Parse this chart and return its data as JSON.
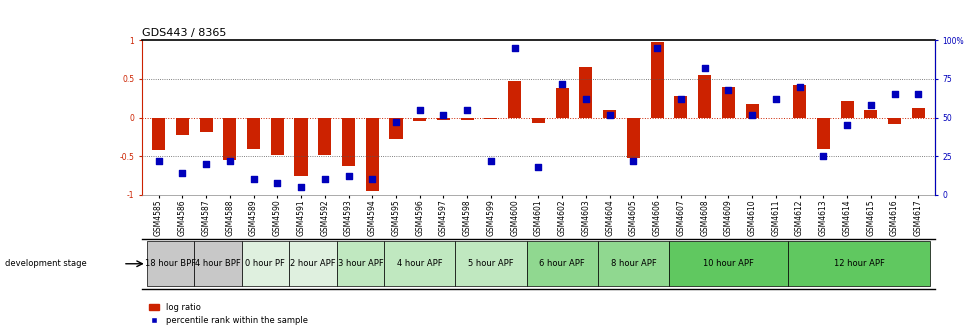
{
  "title": "GDS443 / 8365",
  "samples": [
    "GSM4585",
    "GSM4586",
    "GSM4587",
    "GSM4588",
    "GSM4589",
    "GSM4590",
    "GSM4591",
    "GSM4592",
    "GSM4593",
    "GSM4594",
    "GSM4595",
    "GSM4596",
    "GSM4597",
    "GSM4598",
    "GSM4599",
    "GSM4600",
    "GSM4601",
    "GSM4602",
    "GSM4603",
    "GSM4604",
    "GSM4605",
    "GSM4606",
    "GSM4607",
    "GSM4608",
    "GSM4609",
    "GSM4610",
    "GSM4611",
    "GSM4612",
    "GSM4613",
    "GSM4614",
    "GSM4615",
    "GSM4616",
    "GSM4617"
  ],
  "log_ratio": [
    -0.42,
    -0.22,
    -0.18,
    -0.55,
    -0.4,
    -0.48,
    -0.75,
    -0.48,
    -0.62,
    -0.95,
    -0.28,
    -0.04,
    -0.03,
    -0.03,
    -0.02,
    0.47,
    -0.07,
    0.38,
    0.65,
    0.1,
    -0.52,
    0.98,
    0.28,
    0.55,
    0.4,
    0.17,
    -0.01,
    0.42,
    -0.4,
    0.22,
    0.1,
    -0.08,
    0.12
  ],
  "percentile": [
    22,
    14,
    20,
    22,
    10,
    8,
    5,
    10,
    12,
    10,
    47,
    55,
    52,
    55,
    22,
    95,
    18,
    72,
    62,
    52,
    22,
    95,
    62,
    82,
    68,
    52,
    62,
    70,
    25,
    45,
    58,
    65,
    65
  ],
  "stages": [
    {
      "label": "18 hour BPF",
      "start": 0,
      "end": 2
    },
    {
      "label": "4 hour BPF",
      "start": 2,
      "end": 4
    },
    {
      "label": "0 hour PF",
      "start": 4,
      "end": 6
    },
    {
      "label": "2 hour APF",
      "start": 6,
      "end": 8
    },
    {
      "label": "3 hour APF",
      "start": 8,
      "end": 10
    },
    {
      "label": "4 hour APF",
      "start": 10,
      "end": 13
    },
    {
      "label": "5 hour APF",
      "start": 13,
      "end": 16
    },
    {
      "label": "6 hour APF",
      "start": 16,
      "end": 19
    },
    {
      "label": "8 hour APF",
      "start": 19,
      "end": 22
    },
    {
      "label": "10 hour APF",
      "start": 22,
      "end": 27
    },
    {
      "label": "12 hour APF",
      "start": 27,
      "end": 33
    }
  ],
  "stage_colors": {
    "18 hour BPF": "#c8c8c8",
    "4 hour BPF": "#c8c8c8",
    "0 hour PF": "#dff0df",
    "2 hour APF": "#dff0df",
    "3 hour APF": "#c0e8c0",
    "4 hour APF": "#c0e8c0",
    "5 hour APF": "#c0e8c0",
    "6 hour APF": "#90d890",
    "8 hour APF": "#90d890",
    "10 hour APF": "#60c860",
    "12 hour APF": "#60c860"
  },
  "bar_color": "#cc2200",
  "dot_color": "#0000bb",
  "ylim": [
    -1.0,
    1.0
  ],
  "y2lim": [
    0,
    100
  ],
  "background_color": "#ffffff",
  "title_fontsize": 8,
  "tick_fontsize": 5.5,
  "stage_fontsize": 6
}
